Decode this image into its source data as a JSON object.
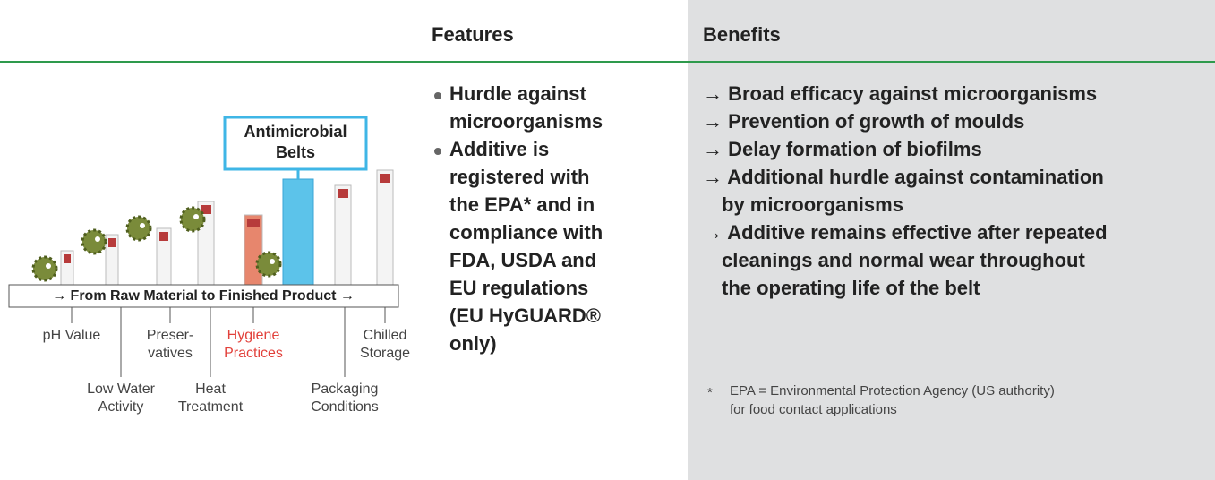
{
  "header": {
    "features": "Features",
    "benefits": "Benefits"
  },
  "diagram": {
    "callout": [
      "Antimicrobial",
      "Belts"
    ],
    "banner": "→ From Raw Material to Finished Product →",
    "hurdles": [
      {
        "lines": [
          "pH Value"
        ]
      },
      {
        "lines": [
          "Low Water",
          "Activity"
        ]
      },
      {
        "lines": [
          "Preser-",
          "vatives"
        ]
      },
      {
        "lines": [
          "Heat",
          "Treatment"
        ]
      },
      {
        "lines": [
          "Hygiene",
          "Practices"
        ],
        "color": "#e2413b"
      },
      {
        "lines": [
          "Packaging",
          "Conditions"
        ]
      },
      {
        "lines": [
          "Chilled",
          "Storage"
        ]
      }
    ]
  },
  "features": [
    [
      "Hurdle against",
      "microorganisms"
    ],
    [
      "Additive is",
      "registered with",
      "the EPA* and in",
      "compliance with",
      "FDA, USDA and",
      "EU regulations",
      "(EU HyGUARD®",
      "only)"
    ]
  ],
  "benefits": [
    [
      "→ Broad efficacy against microorganisms"
    ],
    [
      "→ Prevention of growth of moulds"
    ],
    [
      "→ Delay formation of biofilms"
    ],
    [
      "→ Additional hurdle against contamination",
      "by microorganisms"
    ],
    [
      "→ Additive remains effective after repeated",
      "cleanings and normal wear throughout",
      "the operating life of the belt"
    ]
  ],
  "footnote": {
    "mark": "*",
    "lines": [
      "EPA = Environmental Protection Agency (US authority)",
      "for food contact applications"
    ]
  }
}
